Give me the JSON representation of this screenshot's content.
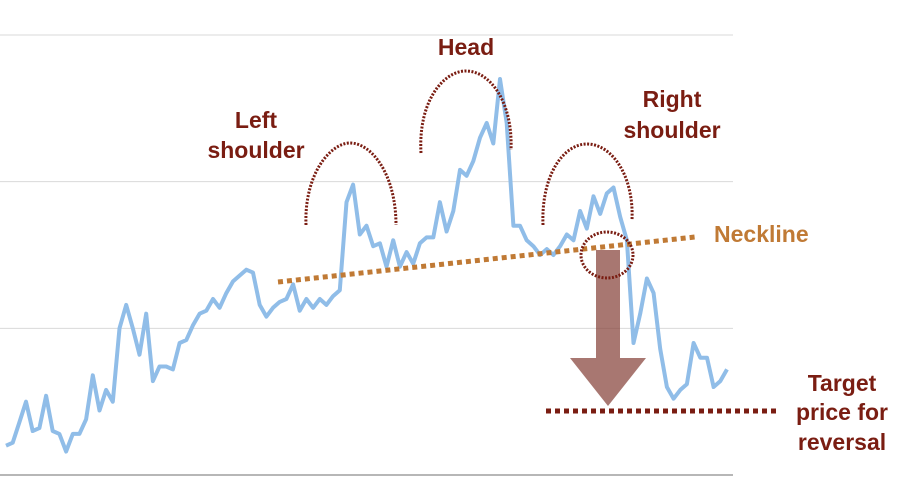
{
  "chart_data": {
    "type": "line",
    "title": "",
    "xlabel": "",
    "ylabel": "",
    "grid": true,
    "series": [
      {
        "values": [
          10,
          11,
          18,
          25,
          15,
          16,
          27,
          15,
          14,
          8,
          14,
          14,
          19,
          34,
          22,
          29,
          25,
          50,
          58,
          50,
          41,
          55,
          32,
          37,
          37,
          36,
          45,
          46,
          51,
          55,
          56,
          60,
          57,
          62,
          66,
          68,
          70,
          69,
          58,
          54,
          57,
          59,
          60,
          65,
          56,
          60,
          57,
          60,
          58,
          61,
          63,
          93,
          99,
          82,
          85,
          78,
          79,
          71,
          80,
          71,
          76,
          72,
          79,
          81,
          81,
          93,
          83,
          90,
          104,
          102,
          107,
          115,
          120,
          113,
          135,
          120,
          85,
          85,
          80,
          78,
          75,
          77,
          75,
          78,
          82,
          80,
          90,
          84,
          95,
          89,
          96,
          98,
          88,
          80,
          45,
          55,
          67,
          62,
          43,
          30,
          26,
          29,
          31,
          45,
          40,
          40,
          30,
          32,
          36
        ]
      }
    ]
  },
  "annotations": {
    "head": "Head",
    "left_shoulder": [
      "Left",
      "shoulder"
    ],
    "right_shoulder": [
      "Right",
      "shoulder"
    ],
    "neckline": "Neckline",
    "target": [
      "Target",
      "price for",
      "reversal"
    ]
  },
  "colors": {
    "price_line": "#90bde8",
    "arc": "#7a1d12",
    "neckline": "#c07a35",
    "label_dark": "#7a1d12",
    "arrow": "#8b4a42",
    "grid": "#d9d9d9"
  }
}
